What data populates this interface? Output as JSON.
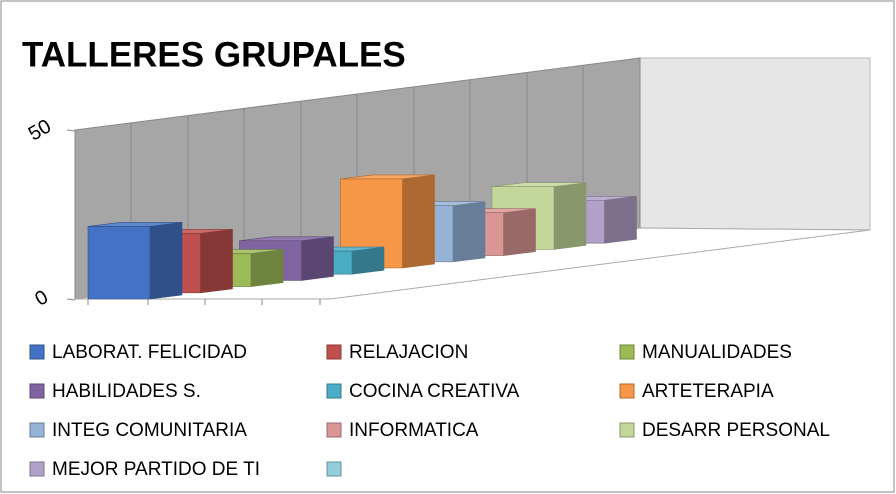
{
  "chart_data": {
    "type": "bar3d",
    "title": "TALLERES GRUPALES",
    "ylim": [
      0,
      50
    ],
    "yticks": [
      0,
      50
    ],
    "series": [
      {
        "name": "LABORAT. FELICIDAD",
        "color": "#4472c4",
        "values": [
          22
        ]
      },
      {
        "name": "RELAJACION",
        "color": "#c0504d",
        "values": [
          18
        ]
      },
      {
        "name": "MANUALIDADES",
        "color": "#9bbb59",
        "values": [
          10
        ]
      },
      {
        "name": "HABILIDADES S.",
        "color": "#8064a2",
        "values": [
          12
        ]
      },
      {
        "name": "COCINA CREATIVA",
        "color": "#4bacc6",
        "values": [
          7
        ]
      },
      {
        "name": "ARTETERAPIA",
        "color": "#f79646",
        "values": [
          27
        ]
      },
      {
        "name": "INTEG COMUNITARIA",
        "color": "#95b3d7",
        "values": [
          17
        ]
      },
      {
        "name": "INFORMATICA",
        "color": "#da9694",
        "values": [
          13
        ]
      },
      {
        "name": "DESARR PERSONAL",
        "color": "#c4d79b",
        "values": [
          19
        ]
      },
      {
        "name": "MEJOR PARTIDO DE TI",
        "color": "#b1a0c7",
        "values": [
          13
        ]
      },
      {
        "name": null,
        "color": "#92cddc",
        "values": [
          null
        ]
      }
    ]
  }
}
